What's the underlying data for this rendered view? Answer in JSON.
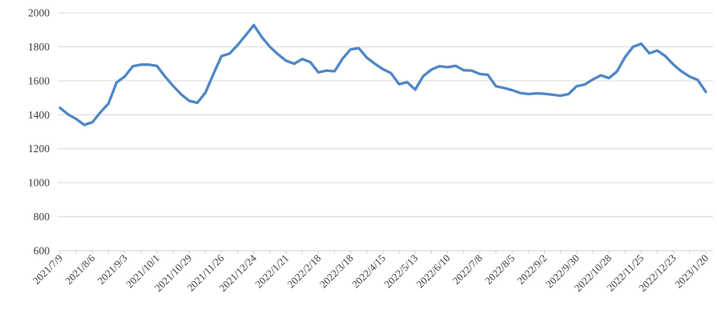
{
  "chart_data": {
    "type": "line",
    "title": "",
    "xlabel": "",
    "ylabel": "",
    "ylim": [
      600,
      2000
    ],
    "y_ticks": [
      600,
      800,
      1000,
      1200,
      1400,
      1600,
      1800,
      2000
    ],
    "grid": true,
    "legend": false,
    "x_tick_labels": [
      "2021/7/9",
      "2021/8/6",
      "2021/9/3",
      "2021/10/1",
      "2021/10/29",
      "2021/11/26",
      "2021/12/24",
      "2022/1/21",
      "2022/2/18",
      "2022/3/18",
      "2022/4/15",
      "2022/5/13",
      "2022/6/10",
      "2022/7/8",
      "2022/8/5",
      "2022/9/2",
      "2022/9/30",
      "2022/10/28",
      "2022/11/25",
      "2022/12/23",
      "2023/1/20"
    ],
    "label_every_n_points": 4,
    "tick_mark_every_n_points": 2,
    "series": [
      {
        "name": "series-1",
        "color": "#4F87C6",
        "values": [
          1440,
          1402,
          1375,
          1340,
          1356,
          1415,
          1466,
          1590,
          1625,
          1685,
          1695,
          1695,
          1688,
          1625,
          1570,
          1520,
          1482,
          1470,
          1530,
          1640,
          1745,
          1760,
          1810,
          1868,
          1928,
          1856,
          1800,
          1756,
          1718,
          1700,
          1728,
          1710,
          1650,
          1660,
          1656,
          1730,
          1785,
          1792,
          1736,
          1700,
          1668,
          1645,
          1580,
          1592,
          1548,
          1628,
          1666,
          1686,
          1680,
          1688,
          1662,
          1660,
          1640,
          1635,
          1568,
          1558,
          1545,
          1528,
          1522,
          1526,
          1524,
          1518,
          1512,
          1522,
          1568,
          1578,
          1608,
          1632,
          1616,
          1655,
          1740,
          1800,
          1818,
          1762,
          1778,
          1745,
          1695,
          1655,
          1625,
          1605,
          1535
        ]
      }
    ],
    "colors": {
      "line": "#4F87C6",
      "gridline": "#D9D9D9",
      "axis": "#D9D9D9",
      "tick_mark": "#CFCFCF",
      "tick_text": "#3F3F3F",
      "background": "#FFFFFF"
    }
  }
}
